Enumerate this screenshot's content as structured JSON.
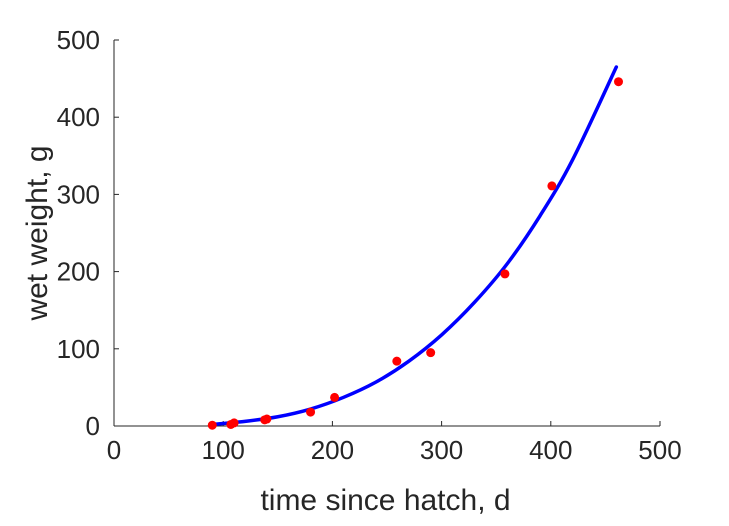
{
  "chart_data": {
    "type": "scatter",
    "title": "",
    "xlabel": "time since hatch, d",
    "ylabel": "wet weight, g",
    "xlim": [
      0,
      500
    ],
    "ylim": [
      0,
      500
    ],
    "xticks": [
      "0",
      "100",
      "200",
      "300",
      "400",
      "500"
    ],
    "yticks": [
      "0",
      "100",
      "200",
      "300",
      "400",
      "500"
    ],
    "grid": false,
    "legend": "none",
    "series": [
      {
        "kind": "points",
        "color": "#ff0000",
        "x": [
          90,
          107,
          110,
          138,
          140,
          180,
          202,
          259,
          290,
          358,
          401,
          462
        ],
        "y": [
          1,
          2,
          4,
          8,
          9,
          18,
          37,
          84,
          95,
          197,
          311,
          446
        ]
      },
      {
        "kind": "line",
        "color": "#0000ff",
        "x": [
          90,
          120,
          150,
          180,
          210,
          240,
          270,
          300,
          330,
          360,
          390,
          420,
          460
        ],
        "y": [
          2,
          6,
          12,
          22,
          37,
          57,
          84,
          118,
          160,
          210,
          272,
          345,
          465
        ]
      }
    ]
  }
}
